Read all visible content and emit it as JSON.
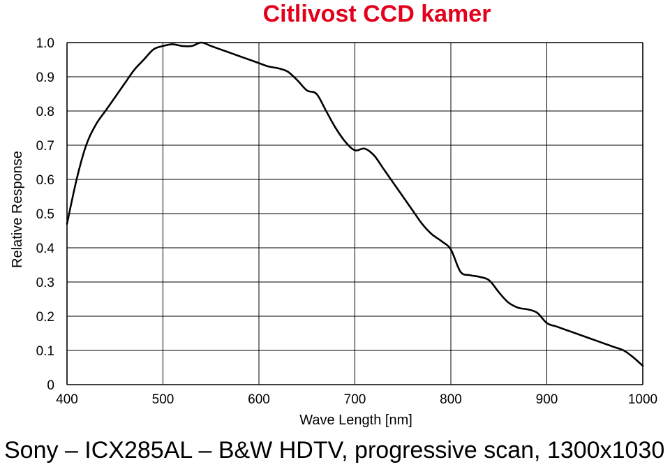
{
  "slide": {
    "title": "Citlivost CCD kamer",
    "caption": "Sony – ICX285AL – B&W HDTV, progressive scan, 1300x1030"
  },
  "colors": {
    "title": "#e3001b",
    "grid": "#000000",
    "curve": "#000000"
  },
  "chart_data": {
    "type": "line",
    "title": "",
    "xlabel": "Wave Length [nm]",
    "ylabel": "Relative Response",
    "xlim": [
      400,
      1000
    ],
    "ylim": [
      0,
      1.0
    ],
    "x_ticks": [
      400,
      500,
      600,
      700,
      800,
      900,
      1000
    ],
    "y_ticks": [
      0,
      0.1,
      0.2,
      0.3,
      0.4,
      0.5,
      0.6,
      0.7,
      0.8,
      0.9,
      1.0
    ],
    "x_tick_labels": [
      "400",
      "500",
      "600",
      "700",
      "800",
      "900",
      "1000"
    ],
    "y_tick_labels": [
      "0",
      "0.1",
      "0.2",
      "0.3",
      "0.4",
      "0.5",
      "0.6",
      "0.7",
      "0.8",
      "0.9",
      "1.0"
    ],
    "grid": true,
    "series": [
      {
        "x": [
          400,
          410,
          420,
          430,
          440,
          450,
          460,
          470,
          480,
          490,
          500,
          510,
          520,
          530,
          540,
          550,
          560,
          570,
          580,
          590,
          600,
          610,
          620,
          630,
          640,
          650,
          660,
          670,
          680,
          690,
          700,
          710,
          720,
          730,
          740,
          750,
          760,
          770,
          780,
          790,
          800,
          810,
          820,
          830,
          840,
          850,
          860,
          870,
          880,
          890,
          900,
          910,
          920,
          930,
          940,
          950,
          960,
          970,
          980,
          990,
          1000
        ],
        "values": [
          0.47,
          0.6,
          0.7,
          0.76,
          0.8,
          0.84,
          0.88,
          0.92,
          0.95,
          0.98,
          0.99,
          0.995,
          0.99,
          0.99,
          1.0,
          0.99,
          0.98,
          0.97,
          0.96,
          0.95,
          0.94,
          0.93,
          0.925,
          0.915,
          0.89,
          0.86,
          0.85,
          0.8,
          0.75,
          0.71,
          0.685,
          0.69,
          0.67,
          0.63,
          0.59,
          0.55,
          0.51,
          0.47,
          0.44,
          0.42,
          0.395,
          0.33,
          0.32,
          0.315,
          0.305,
          0.27,
          0.24,
          0.225,
          0.22,
          0.21,
          0.18,
          0.17,
          0.16,
          0.15,
          0.14,
          0.13,
          0.12,
          0.11,
          0.1,
          0.08,
          0.055
        ]
      }
    ]
  }
}
